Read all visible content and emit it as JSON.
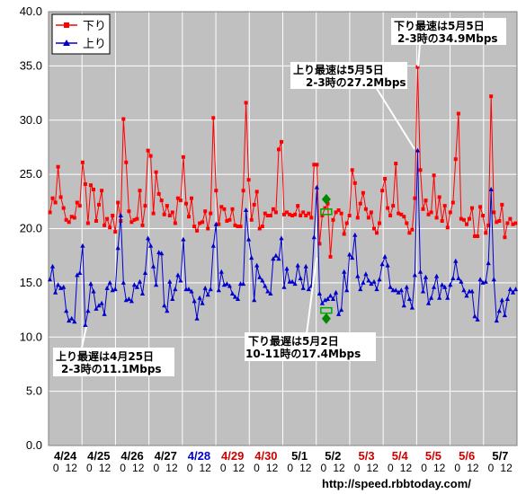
{
  "chart_data": {
    "type": "line",
    "ylim": [
      0,
      40
    ],
    "yticks": [
      "0.0",
      "5.0",
      "10.0",
      "15.0",
      "20.0",
      "25.0",
      "30.0",
      "35.0",
      "40.0"
    ],
    "grid": true,
    "legend_position": "top-left",
    "colors": {
      "plot_bg": "#c0c0c0",
      "down": "#ff0000",
      "up": "#0000cc",
      "black_date": "#000000",
      "blue_date": "#0000cc",
      "red_date": "#cc0000",
      "marker_green": "#00aa00"
    },
    "days": [
      {
        "label": "4/24",
        "color": "black"
      },
      {
        "label": "4/25",
        "color": "black"
      },
      {
        "label": "4/26",
        "color": "black"
      },
      {
        "label": "4/27",
        "color": "black"
      },
      {
        "label": "4/28",
        "color": "blue"
      },
      {
        "label": "4/29",
        "color": "red"
      },
      {
        "label": "4/30",
        "color": "red"
      },
      {
        "label": "5/1",
        "color": "black"
      },
      {
        "label": "5/2",
        "color": "black"
      },
      {
        "label": "5/3",
        "color": "red"
      },
      {
        "label": "5/4",
        "color": "red"
      },
      {
        "label": "5/5",
        "color": "red"
      },
      {
        "label": "5/6",
        "color": "red"
      },
      {
        "label": "5/7",
        "color": "black"
      }
    ],
    "hour_labels": [
      "0",
      "12"
    ],
    "series": [
      {
        "name": "下り",
        "color": "#ff0000",
        "marker": "square",
        "values": [
          21.5,
          22.8,
          22.4,
          25.7,
          22.9,
          21.9,
          20.8,
          20.6,
          21.1,
          21.0,
          22.4,
          22.1,
          26.1,
          24.1,
          20.5,
          24.0,
          23.6,
          20.7,
          22.2,
          23.5,
          20.3,
          20.9,
          20.1,
          21.2,
          19.7,
          22.4,
          20.7,
          30.1,
          26.1,
          21.6,
          20.6,
          20.8,
          20.9,
          23.5,
          20.3,
          22.1,
          27.2,
          26.7,
          21.4,
          25.2,
          23.2,
          22.6,
          21.3,
          22.1,
          21.2,
          21.5,
          20.5,
          22.8,
          22.6,
          26.6,
          22.3,
          21.1,
          22.8,
          20.2,
          19.8,
          20.5,
          20.6,
          21.6,
          20.0,
          21.4,
          30.2,
          23.5,
          20.4,
          22.0,
          21.8,
          20.7,
          20.8,
          21.8,
          20.3,
          20.2,
          20.2,
          23.5,
          31.6,
          24.5,
          20.8,
          22.2,
          23.4,
          20.0,
          20.2,
          21.4,
          21.2,
          21.2,
          21.8,
          21.5,
          27.3,
          28.0,
          21.3,
          21.5,
          21.3,
          21.2,
          21.3,
          22.1,
          21.2,
          21.5,
          21.2,
          21.4,
          21.0,
          25.9,
          25.9,
          18.6,
          21.2,
          21.9,
          22.3,
          17.4,
          20.8,
          21.5,
          21.7,
          21.4,
          19.5,
          20.5,
          21.2,
          25.4,
          24.2,
          21.0,
          22.3,
          23.3,
          21.8,
          21.0,
          21.5,
          20.0,
          19.6,
          20.5,
          23.5,
          24.6,
          21.9,
          21.2,
          22.1,
          26.0,
          21.4,
          21.3,
          21.1,
          20.5,
          19.6,
          19.9,
          22.8,
          34.9,
          25.4,
          21.8,
          22.6,
          21.3,
          21.5,
          24.9,
          21.0,
          22.9,
          20.7,
          22.1,
          20.1,
          21.5,
          22.4,
          26.4,
          30.6,
          20.9,
          20.8,
          20.4,
          20.9,
          21.9,
          19.3,
          19.3,
          22.0,
          21.2,
          19.6,
          20.3,
          32.2,
          21.5,
          20.6,
          20.7,
          22.2,
          19.2,
          20.5,
          20.9,
          20.4,
          20.5
        ]
      },
      {
        "name": "上り",
        "color": "#0000cc",
        "marker": "triangle",
        "values": [
          15.3,
          16.5,
          14.1,
          14.8,
          14.5,
          14.6,
          12.4,
          11.5,
          11.7,
          11.4,
          15.7,
          15.9,
          18.4,
          11.1,
          12.4,
          14.9,
          14.2,
          12.6,
          12.9,
          13.1,
          12.1,
          14.5,
          15.0,
          14.3,
          14.4,
          18.2,
          21.2,
          15.0,
          13.4,
          13.5,
          13.3,
          14.8,
          14.6,
          15.1,
          14.0,
          15.9,
          19.1,
          18.4,
          16.5,
          14.8,
          17.8,
          17.7,
          12.9,
          12.4,
          15.1,
          13.5,
          14.4,
          15.7,
          15.2,
          19.0,
          14.4,
          14.4,
          14.2,
          13.3,
          11.7,
          13.6,
          13.1,
          14.5,
          13.9,
          14.4,
          18.4,
          20.4,
          14.3,
          16.0,
          14.8,
          14.9,
          14.7,
          14.0,
          13.7,
          13.5,
          14.9,
          14.9,
          21.7,
          19.0,
          17.3,
          13.4,
          16.6,
          15.5,
          15.2,
          14.7,
          14.2,
          14.0,
          17.2,
          17.5,
          17.2,
          19.1,
          14.6,
          16.3,
          15.1,
          15.1,
          14.9,
          16.6,
          15.4,
          14.5,
          16.5,
          14.4,
          14.7,
          19.2,
          23.8,
          14.0,
          13.1,
          13.4,
          13.5,
          13.8,
          13.5,
          14.1,
          12.1,
          12.5,
          16.0,
          14.3,
          17.6,
          17.3,
          19.4,
          15.6,
          14.4,
          15.0,
          15.8,
          15.2,
          14.9,
          15.1,
          14.4,
          15.3,
          16.7,
          17.4,
          16.6,
          14.6,
          14.3,
          14.3,
          14.1,
          14.3,
          12.9,
          14.6,
          13.5,
          12.7,
          15.7,
          27.2,
          16.0,
          14.2,
          15.5,
          13.1,
          13.6,
          14.6,
          15.6,
          13.6,
          14.8,
          14.6,
          13.6,
          14.8,
          15.4,
          17.0,
          15.4,
          15.1,
          14.3,
          13.8,
          14.2,
          14.2,
          11.9,
          11.6,
          15.3,
          15.0,
          15.1,
          16.8,
          23.6,
          15.3,
          11.5,
          12.4,
          13.4,
          12.0,
          13.5,
          14.4,
          14.1,
          14.4
        ]
      }
    ],
    "annotations": [
      {
        "lines": [
          "下り最速は5月5日",
          "2-3時の34.9Mbps"
        ]
      },
      {
        "lines": [
          "上り最速は5月5日",
          "2-3時の27.2Mbps"
        ]
      },
      {
        "lines": [
          "上り最遅は4月25日",
          "2-3時の11.1Mbps"
        ]
      },
      {
        "lines": [
          "下り最遅は5月2日",
          "10-11時の17.4Mbps"
        ]
      }
    ],
    "source": "http://speed.rbbtoday.com/"
  }
}
